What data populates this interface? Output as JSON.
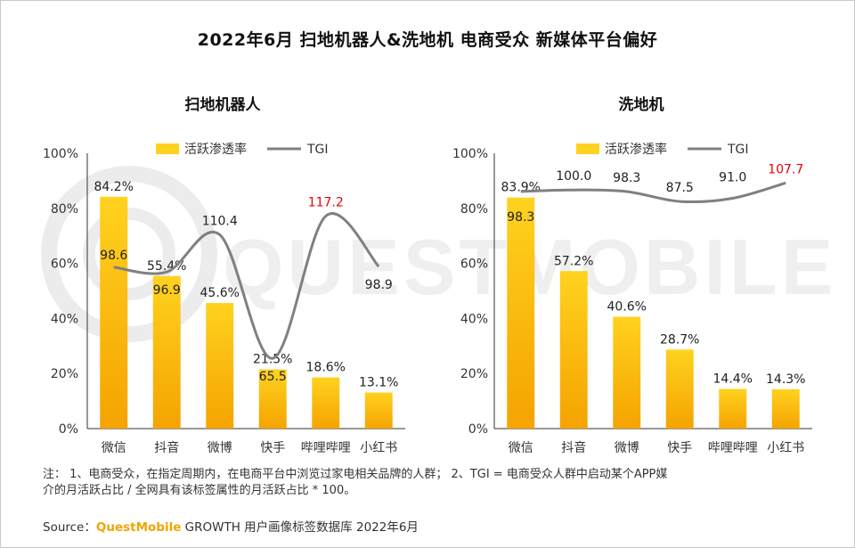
{
  "page": {
    "title": "2022年6月 扫地机器人&洗地机 电商受众 新媒体平台偏好",
    "note_line1": "注： 1、电商受众，在指定周期内，在电商平台中浏览过家电相关品牌的人群； 2、TGI = 电商受众人群中启动某个APP媒",
    "note_line2": "介的月活跃占比 / 全网具有该标签属性的月活跃占比 * 100。",
    "source_label": "Source：",
    "source_brand": "QuestMobile",
    "source_rest": " GROWTH 用户画像标签数据库 2022年6月",
    "watermark": "QUESTMOBILE"
  },
  "colors": {
    "bar_top": "#FFD21F",
    "bar_bottom": "#F5A300",
    "line": "#808080",
    "highlight": "#E8000B",
    "axis": "#333333"
  },
  "chart_data": [
    {
      "type": "bar",
      "title": "扫地机器人",
      "categories": [
        "微信",
        "抖音",
        "微博",
        "快手",
        "哔哩哔哩",
        "小红书"
      ],
      "series": [
        {
          "name": "活跃渗透率",
          "type": "bar",
          "values": [
            84.2,
            55.4,
            45.6,
            21.5,
            18.6,
            13.1
          ],
          "labels": [
            "84.2%",
            "55.4%",
            "45.6%",
            "21.5%",
            "18.6%",
            "13.1%"
          ]
        },
        {
          "name": "TGI",
          "type": "line",
          "values": [
            98.6,
            96.9,
            110.4,
            65.5,
            117.2,
            98.9
          ],
          "labels": [
            "98.6",
            "96.9",
            "110.4",
            "65.5",
            "117.2",
            "98.9"
          ],
          "highlight_index": 4
        }
      ],
      "yticks": [
        "0%",
        "20%",
        "40%",
        "60%",
        "80%",
        "100%"
      ],
      "ylim": [
        0,
        100
      ],
      "legend": "top"
    },
    {
      "type": "bar",
      "title": "洗地机",
      "categories": [
        "微信",
        "抖音",
        "微博",
        "快手",
        "哔哩哔哩",
        "小红书"
      ],
      "series": [
        {
          "name": "活跃渗透率",
          "type": "bar",
          "values": [
            83.9,
            57.2,
            40.6,
            28.7,
            14.4,
            14.3
          ],
          "labels": [
            "83.9%",
            "57.2%",
            "40.6%",
            "28.7%",
            "14.4%",
            "14.3%"
          ]
        },
        {
          "name": "TGI",
          "type": "line",
          "values": [
            98.3,
            100.0,
            98.3,
            87.5,
            91.0,
            107.7
          ],
          "labels": [
            "98.3",
            "100.0",
            "98.3",
            "87.5",
            "91.0",
            "107.7"
          ],
          "highlight_index": 5
        }
      ],
      "yticks": [
        "0%",
        "20%",
        "40%",
        "60%",
        "80%",
        "100%"
      ],
      "ylim": [
        0,
        100
      ],
      "legend": "top"
    }
  ]
}
